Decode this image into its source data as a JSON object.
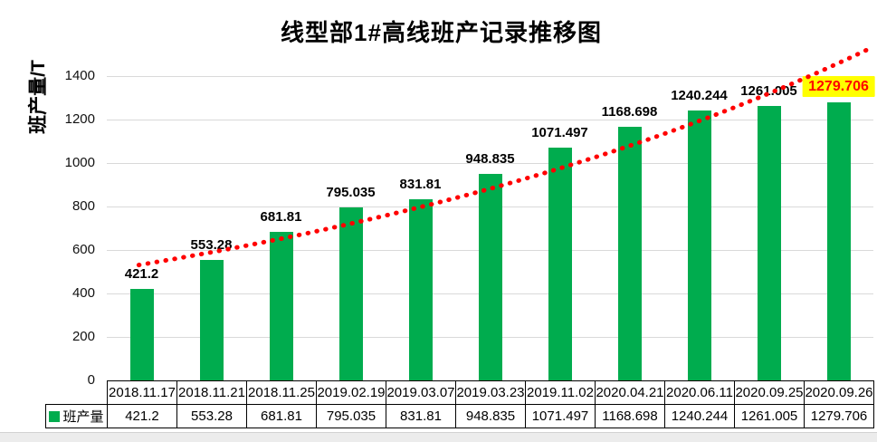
{
  "page": {
    "title": "线型部1#高线班产记录推移图",
    "y_axis_title": "班产量/T"
  },
  "chart_data": {
    "type": "bar",
    "title": "线型部1#高线班产记录推移图",
    "ylabel": "班产量/T",
    "categories": [
      "2018.11.17",
      "2018.11.21",
      "2018.11.25",
      "2019.02.19",
      "2019.03.07",
      "2019.03.23",
      "2019.11.02",
      "2020.04.21",
      "2020.06.11",
      "2020.09.25",
      "2020.09.26"
    ],
    "series": [
      {
        "name": "班产量",
        "values": [
          421.2,
          553.28,
          681.81,
          795.035,
          831.81,
          948.835,
          1071.497,
          1168.698,
          1240.244,
          1261.005,
          1279.706
        ],
        "value_labels": [
          "421.2",
          "553.28",
          "681.81",
          "795.035",
          "831.81",
          "948.835",
          "1071.497",
          "1168.698",
          "1240.244",
          "1261.005",
          "1279.706"
        ]
      }
    ],
    "ylim": [
      0,
      1500
    ],
    "ytick_step": 200,
    "ytick_max": 1400,
    "grid": true,
    "legend_position": "data-table-left",
    "bar_color": "#00ac4e",
    "gridline_color": "#d9d9d9",
    "trendline": {
      "type": "exponential-fit-dotted",
      "color": "#ff0000",
      "base_value": 533,
      "growth_ratio": 1.106,
      "t_start": -0.04,
      "t_end": 10.4
    },
    "last_point_highlight": {
      "background": "#ffff00",
      "text_color": "#ff0000"
    }
  }
}
